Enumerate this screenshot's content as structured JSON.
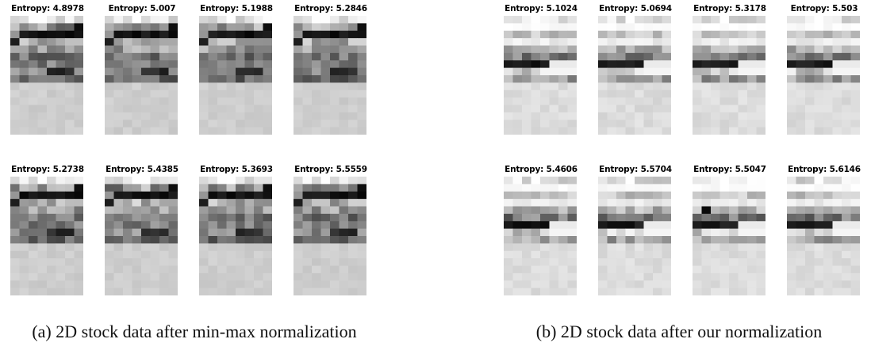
{
  "panels": [
    {
      "id": "a",
      "caption": "(a) 2D stock data after min-max normalization",
      "entropies": [
        [
          "Entropy: 4.8978",
          "Entropy: 5.007",
          "Entropy: 5.1988",
          "Entropy: 5.2846"
        ],
        [
          "Entropy: 5.2738",
          "Entropy: 5.4385",
          "Entropy: 5.3693",
          "Entropy: 5.5559"
        ]
      ]
    },
    {
      "id": "b",
      "caption": "(b) 2D stock data after our normalization",
      "entropies": [
        [
          "Entropy: 5.1024",
          "Entropy: 5.0694",
          "Entropy: 5.3178",
          "Entropy: 5.503"
        ],
        [
          "Entropy: 5.4606",
          "Entropy: 5.5704",
          "Entropy: 5.5047",
          "Entropy: 5.6146"
        ]
      ]
    }
  ]
}
